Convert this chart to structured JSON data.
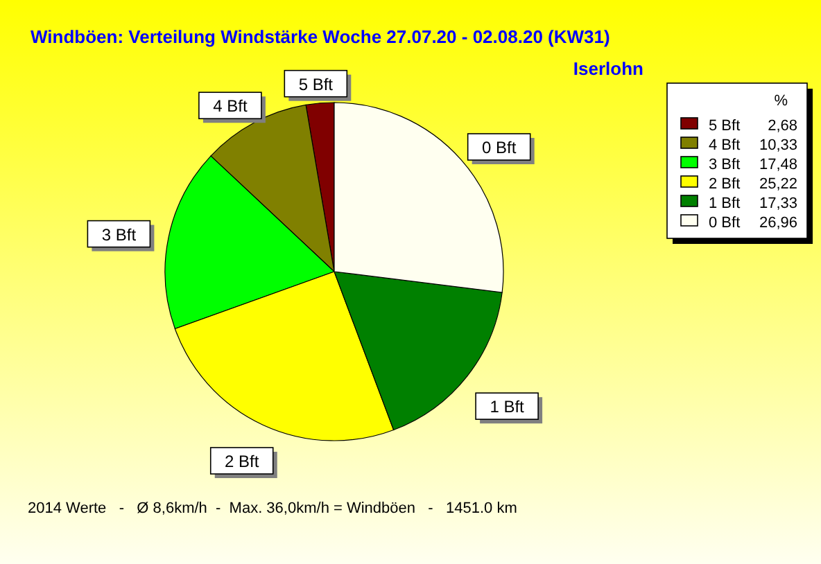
{
  "chart_data": {
    "type": "pie",
    "title": "Windböen: Verteilung Windstärke  Woche 27.07.20 - 02.08.20 (KW31)",
    "subtitle": "Iserlohn",
    "categories": [
      "5 Bft",
      "4 Bft",
      "3 Bft",
      "2 Bft",
      "1 Bft",
      "0 Bft"
    ],
    "values": [
      2.68,
      10.33,
      17.48,
      25.22,
      17.33,
      26.96
    ],
    "value_labels": [
      "2,68",
      "10,33",
      "17,48",
      "25,22",
      "17,33",
      "26,96"
    ],
    "colors": [
      "#800000",
      "#808000",
      "#00ff00",
      "#ffff00",
      "#008000",
      "#fffff0"
    ],
    "legend": "top right",
    "legend_title": "%",
    "annotations": [
      "2014 Werte   -   Ø 8,6km/h  -  Max. 36,0km/h = Windböen   -   1451.0 km"
    ]
  }
}
